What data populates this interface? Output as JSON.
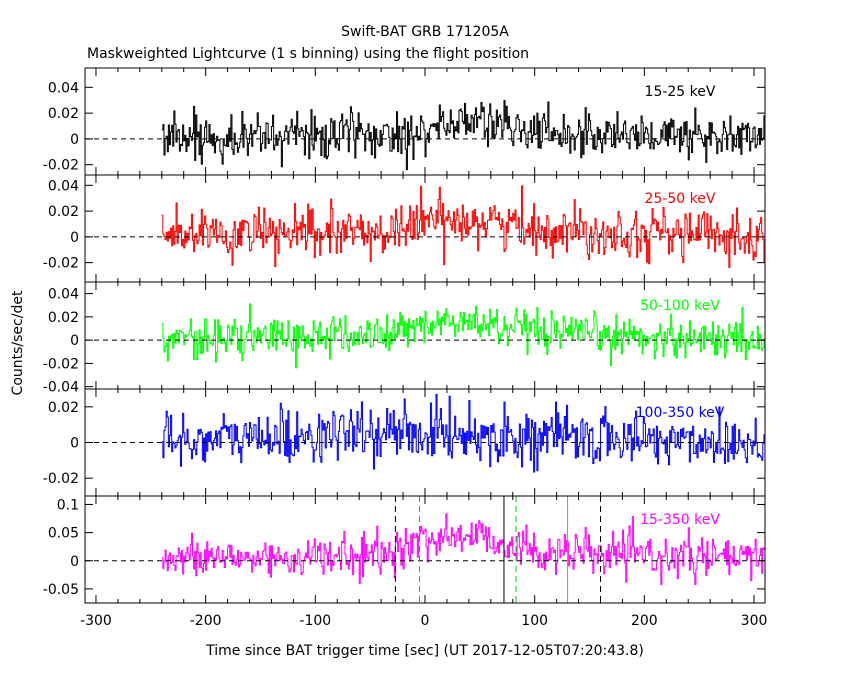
{
  "title": "Swift-BAT GRB 171205A",
  "subtitle": "Maskweighted Lightcurve (1 s binning) using the flight position",
  "ylabel": "Counts/sec/det",
  "xlabel": "Time since BAT trigger time [sec] (UT 2017-12-05T07:20:43.8)",
  "chart_data": {
    "type": "line",
    "xlim": [
      -310,
      310
    ],
    "x_ticks": [
      -300,
      -200,
      -100,
      0,
      100,
      200,
      300
    ],
    "data_start": -240,
    "data_end": 310,
    "bin_size_s": 1,
    "panels": [
      {
        "label": "15-25 keV",
        "color": "#000000",
        "ylim": [
          -0.028,
          0.055
        ],
        "y_ticks": [
          -0.02,
          0,
          0.02,
          0.04
        ],
        "y_tick_labels": [
          "-0.02",
          "0",
          "0.02",
          "0.04"
        ],
        "noise_sd": 0.009,
        "signal": [
          {
            "x": -240,
            "y": 0.002
          },
          {
            "x": -40,
            "y": 0.003
          },
          {
            "x": 0,
            "y": 0.008
          },
          {
            "x": 50,
            "y": 0.015
          },
          {
            "x": 100,
            "y": 0.005
          },
          {
            "x": 310,
            "y": 0.001
          }
        ]
      },
      {
        "label": "25-50 keV",
        "color": "#ff0000",
        "ylim": [
          -0.035,
          0.048
        ],
        "y_ticks": [
          -0.02,
          0,
          0.02,
          0.04
        ],
        "y_tick_labels": [
          "-0.02",
          "0",
          "0.02",
          "0.04"
        ],
        "noise_sd": 0.0095,
        "signal": [
          {
            "x": -240,
            "y": 0.001
          },
          {
            "x": -40,
            "y": 0.003
          },
          {
            "x": 0,
            "y": 0.012
          },
          {
            "x": 40,
            "y": 0.015
          },
          {
            "x": 100,
            "y": 0.006
          },
          {
            "x": 310,
            "y": 0.001
          }
        ]
      },
      {
        "label": "50-100 keV",
        "color": "#00ff00",
        "ylim": [
          -0.042,
          0.05
        ],
        "y_ticks": [
          -0.04,
          -0.02,
          0,
          0.02,
          0.04
        ],
        "y_tick_labels": [
          "-0.04",
          "-0.02",
          "0",
          "0.02",
          "0.04"
        ],
        "noise_sd": 0.0085,
        "signal": [
          {
            "x": -240,
            "y": 0.001
          },
          {
            "x": -40,
            "y": 0.004
          },
          {
            "x": 0,
            "y": 0.014
          },
          {
            "x": 50,
            "y": 0.015
          },
          {
            "x": 100,
            "y": 0.005
          },
          {
            "x": 310,
            "y": 0.001
          }
        ]
      },
      {
        "label": "100-350 keV",
        "color": "#0000ff",
        "ylim": [
          -0.03,
          0.03
        ],
        "y_ticks": [
          -0.02,
          0,
          0.02
        ],
        "y_tick_labels": [
          "-0.02",
          "0",
          "0.02"
        ],
        "noise_sd": 0.0075,
        "signal": [
          {
            "x": -240,
            "y": 0.001
          },
          {
            "x": 0,
            "y": 0.006
          },
          {
            "x": 60,
            "y": 0.004
          },
          {
            "x": 310,
            "y": 0.0
          }
        ]
      },
      {
        "label": "15-350 keV",
        "color": "#ff00ff",
        "ylim": [
          -0.075,
          0.115
        ],
        "y_ticks": [
          -0.05,
          0,
          0.05,
          0.1
        ],
        "y_tick_labels": [
          "-0.05",
          "0",
          "0.05",
          "0.1"
        ],
        "noise_sd": 0.018,
        "signal": [
          {
            "x": -240,
            "y": 0.003
          },
          {
            "x": -40,
            "y": 0.008
          },
          {
            "x": 0,
            "y": 0.04
          },
          {
            "x": 50,
            "y": 0.045
          },
          {
            "x": 100,
            "y": 0.015
          },
          {
            "x": 310,
            "y": 0.002
          }
        ],
        "markers": [
          {
            "x": -27,
            "color": "#000000",
            "style": "dashed"
          },
          {
            "x": -5,
            "color": "#00cc00",
            "style": "dashed"
          },
          {
            "x": 72,
            "color": "#000000",
            "style": "solid"
          },
          {
            "x": 83,
            "color": "#00cc00",
            "style": "dashed"
          },
          {
            "x": 130,
            "color": "#e08000",
            "style": "solid"
          },
          {
            "x": 160,
            "color": "#000000",
            "style": "dashed"
          }
        ]
      }
    ]
  }
}
